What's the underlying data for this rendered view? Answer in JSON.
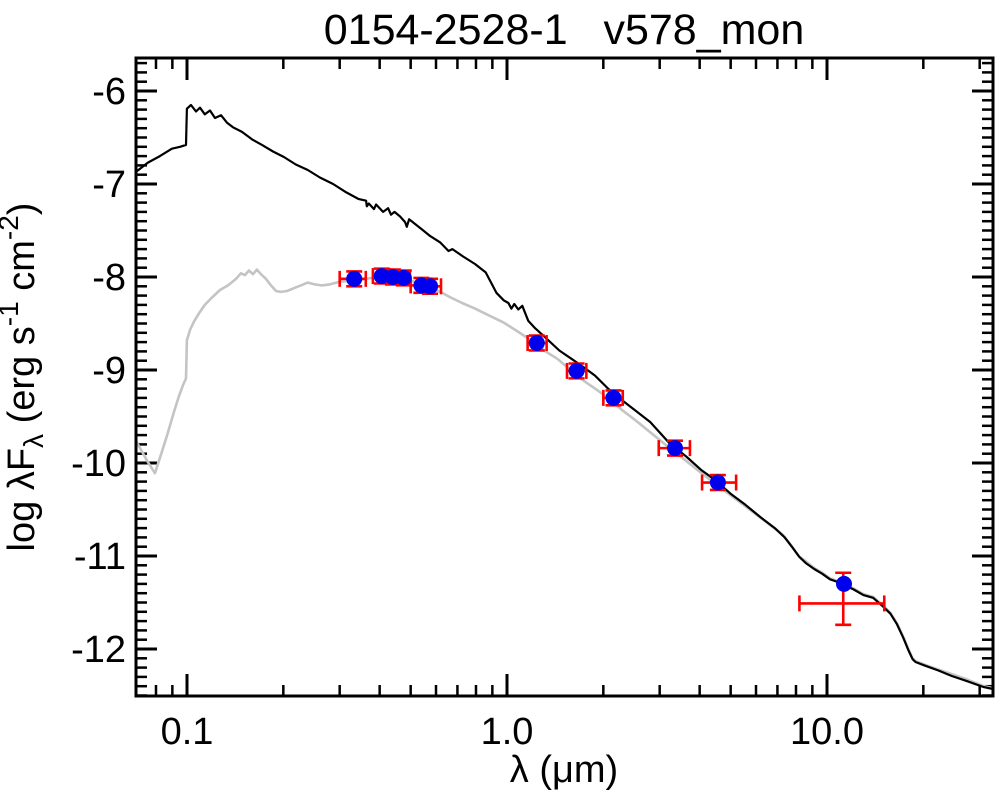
{
  "title": "0154-2528-1   v578_mon",
  "colors": {
    "frame": "#000000",
    "model_unreddened": "#000000",
    "model_reddened": "#c4c4c4",
    "photometry_point": "#0000ee",
    "observed_error": "#ff0000",
    "background": "#ffffff"
  },
  "chart_data": {
    "type": "line+scatter",
    "title": "0154-2528-1   v578_mon",
    "xlabel": "λ (μm)",
    "ylabel_parts": {
      "pre": "log λF",
      "sub": "λ",
      "mid1": " (erg s",
      "sup1": "-1",
      "mid2": " cm",
      "sup2": "-2",
      "end": ")"
    },
    "xscale": "log",
    "xlim": [
      0.0693,
      33.0
    ],
    "ylim": [
      -12.505,
      -5.645
    ],
    "grid": false,
    "legend": "none",
    "x_major_ticks": [
      {
        "value": 0.1,
        "label": "0.1"
      },
      {
        "value": 1.0,
        "label": "1.0"
      },
      {
        "value": 10.0,
        "label": "10.0"
      }
    ],
    "x_minor_ticks": [
      0.08,
      0.09,
      0.2,
      0.3,
      0.4,
      0.5,
      0.6,
      0.7,
      0.8,
      0.9,
      2,
      3,
      4,
      5,
      6,
      7,
      8,
      9,
      20,
      30
    ],
    "y_major_ticks": [
      {
        "value": -6,
        "label": "-6"
      },
      {
        "value": -7,
        "label": "-7"
      },
      {
        "value": -8,
        "label": "-8"
      },
      {
        "value": -9,
        "label": "-9"
      },
      {
        "value": -10,
        "label": "-10"
      },
      {
        "value": -11,
        "label": "-11"
      },
      {
        "value": -12,
        "label": "-12"
      }
    ],
    "y_minor_step": 0.1,
    "series": [
      {
        "name": "model-unreddened",
        "color": "#000000",
        "points": [
          [
            0.0693,
            -6.87
          ],
          [
            0.0755,
            -6.77
          ],
          [
            0.0823,
            -6.7
          ],
          [
            0.0897,
            -6.62
          ],
          [
            0.0951,
            -6.6
          ],
          [
            0.0993,
            -6.58
          ],
          [
            0.0999,
            -6.19
          ],
          [
            0.1029,
            -6.15
          ],
          [
            0.1067,
            -6.22
          ],
          [
            0.1098,
            -6.18
          ],
          [
            0.1137,
            -6.25
          ],
          [
            0.118,
            -6.21
          ],
          [
            0.1223,
            -6.29
          ],
          [
            0.1277,
            -6.26
          ],
          [
            0.1333,
            -6.34
          ],
          [
            0.1392,
            -6.39
          ],
          [
            0.1485,
            -6.44
          ],
          [
            0.1597,
            -6.52
          ],
          [
            0.1716,
            -6.58
          ],
          [
            0.1857,
            -6.65
          ],
          [
            0.2008,
            -6.71
          ],
          [
            0.2187,
            -6.79
          ],
          [
            0.2385,
            -6.85
          ],
          [
            0.2602,
            -6.93
          ],
          [
            0.2861,
            -7.0
          ],
          [
            0.3147,
            -7.09
          ],
          [
            0.3429,
            -7.16
          ],
          [
            0.3629,
            -7.18
          ],
          [
            0.3646,
            -7.24
          ],
          [
            0.37,
            -7.21
          ],
          [
            0.3841,
            -7.27
          ],
          [
            0.39,
            -7.22
          ],
          [
            0.4101,
            -7.3
          ],
          [
            0.425,
            -7.26
          ],
          [
            0.434,
            -7.33
          ],
          [
            0.445,
            -7.3
          ],
          [
            0.4634,
            -7.35
          ],
          [
            0.4805,
            -7.41
          ],
          [
            0.4861,
            -7.46
          ],
          [
            0.4944,
            -7.38
          ],
          [
            0.5163,
            -7.43
          ],
          [
            0.5431,
            -7.49
          ],
          [
            0.5754,
            -7.56
          ],
          [
            0.6194,
            -7.63
          ],
          [
            0.6563,
            -7.72
          ],
          [
            0.675,
            -7.7
          ],
          [
            0.729,
            -7.78
          ],
          [
            0.7945,
            -7.86
          ],
          [
            0.8577,
            -7.95
          ],
          [
            0.9265,
            -8.17
          ],
          [
            0.9763,
            -8.25
          ],
          [
            1.01,
            -8.28
          ],
          [
            1.032,
            -8.34
          ],
          [
            1.054,
            -8.29
          ],
          [
            1.085,
            -8.35
          ],
          [
            1.116,
            -8.31
          ],
          [
            1.165,
            -8.47
          ],
          [
            1.224,
            -8.55
          ],
          [
            1.336,
            -8.67
          ],
          [
            1.457,
            -8.79
          ],
          [
            1.591,
            -8.88
          ],
          [
            1.752,
            -8.98
          ],
          [
            1.884,
            -9.06
          ],
          [
            2.07,
            -9.2
          ],
          [
            2.238,
            -9.3
          ],
          [
            2.506,
            -9.43
          ],
          [
            2.805,
            -9.56
          ],
          [
            3.224,
            -9.79
          ],
          [
            3.632,
            -9.93
          ],
          [
            4.058,
            -10.08
          ],
          [
            4.456,
            -10.18
          ],
          [
            4.999,
            -10.33
          ],
          [
            5.558,
            -10.45
          ],
          [
            6.178,
            -10.58
          ],
          [
            6.871,
            -10.7
          ],
          [
            7.375,
            -10.8
          ],
          [
            7.803,
            -10.91
          ],
          [
            8.197,
            -11.01
          ],
          [
            8.611,
            -11.08
          ],
          [
            9.117,
            -11.14
          ],
          [
            9.651,
            -11.19
          ],
          [
            10.22,
            -11.25
          ],
          [
            10.81,
            -11.28
          ],
          [
            11.45,
            -11.32
          ],
          [
            12.12,
            -11.36
          ],
          [
            12.99,
            -11.42
          ],
          [
            13.93,
            -11.45
          ],
          [
            14.93,
            -11.54
          ],
          [
            15.78,
            -11.62
          ],
          [
            16.53,
            -11.73
          ],
          [
            17.32,
            -11.88
          ],
          [
            18.0,
            -12.02
          ],
          [
            18.51,
            -12.11
          ],
          [
            18.91,
            -12.14
          ],
          [
            20.26,
            -12.18
          ],
          [
            22.25,
            -12.23
          ],
          [
            24.54,
            -12.29
          ],
          [
            27.07,
            -12.34
          ],
          [
            30.9,
            -12.41
          ],
          [
            33.0,
            -12.43
          ]
        ]
      },
      {
        "name": "model-reddened",
        "color": "#c4c4c4",
        "points": [
          [
            0.0693,
            -9.76
          ],
          [
            0.0724,
            -9.88
          ],
          [
            0.0755,
            -9.99
          ],
          [
            0.0794,
            -10.11
          ],
          [
            0.0835,
            -9.88
          ],
          [
            0.0872,
            -9.67
          ],
          [
            0.0911,
            -9.45
          ],
          [
            0.0944,
            -9.28
          ],
          [
            0.0972,
            -9.16
          ],
          [
            0.0993,
            -9.09
          ],
          [
            0.0999,
            -8.68
          ],
          [
            0.1022,
            -8.57
          ],
          [
            0.1052,
            -8.48
          ],
          [
            0.109,
            -8.39
          ],
          [
            0.1137,
            -8.3
          ],
          [
            0.1197,
            -8.22
          ],
          [
            0.1268,
            -8.14
          ],
          [
            0.1343,
            -8.09
          ],
          [
            0.1423,
            -8.02
          ],
          [
            0.1474,
            -7.96
          ],
          [
            0.1517,
            -7.98
          ],
          [
            0.1561,
            -7.93
          ],
          [
            0.1607,
            -7.97
          ],
          [
            0.1654,
            -7.92
          ],
          [
            0.1703,
            -7.97
          ],
          [
            0.1765,
            -8.02
          ],
          [
            0.183,
            -8.09
          ],
          [
            0.1897,
            -8.15
          ],
          [
            0.1967,
            -8.16
          ],
          [
            0.2053,
            -8.15
          ],
          [
            0.2158,
            -8.12
          ],
          [
            0.2268,
            -8.09
          ],
          [
            0.2385,
            -8.06
          ],
          [
            0.2507,
            -8.08
          ],
          [
            0.2634,
            -8.09
          ],
          [
            0.2792,
            -8.08
          ],
          [
            0.3005,
            -8.05
          ],
          [
            0.3235,
            -8.04
          ],
          [
            0.3481,
            -8.03
          ],
          [
            0.3787,
            -8.01
          ],
          [
            0.4096,
            -8.0
          ],
          [
            0.443,
            -8.01
          ],
          [
            0.4773,
            -8.02
          ],
          [
            0.5143,
            -8.05
          ],
          [
            0.5431,
            -8.09
          ],
          [
            0.5754,
            -8.12
          ],
          [
            0.6194,
            -8.16
          ],
          [
            0.6668,
            -8.22
          ],
          [
            0.7237,
            -8.28
          ],
          [
            0.7945,
            -8.34
          ],
          [
            0.8862,
            -8.42
          ],
          [
            0.9763,
            -8.49
          ],
          [
            1.085,
            -8.59
          ],
          [
            1.224,
            -8.71
          ],
          [
            1.319,
            -8.8
          ],
          [
            1.437,
            -8.88
          ],
          [
            1.591,
            -9.01
          ],
          [
            1.727,
            -9.11
          ],
          [
            1.884,
            -9.2
          ],
          [
            2.07,
            -9.3
          ],
          [
            2.288,
            -9.43
          ],
          [
            2.542,
            -9.55
          ],
          [
            2.853,
            -9.69
          ],
          [
            3.224,
            -9.84
          ],
          [
            3.58,
            -9.96
          ],
          [
            3.99,
            -10.09
          ],
          [
            4.456,
            -10.22
          ],
          [
            4.927,
            -10.33
          ],
          [
            5.479,
            -10.45
          ],
          [
            6.041,
            -10.56
          ],
          [
            6.661,
            -10.67
          ],
          [
            7.27,
            -10.77
          ],
          [
            7.748,
            -10.89
          ],
          [
            8.138,
            -11.0
          ],
          [
            8.611,
            -11.06
          ],
          [
            9.117,
            -11.13
          ],
          [
            9.651,
            -11.18
          ],
          [
            10.22,
            -11.24
          ],
          [
            10.81,
            -11.27
          ],
          [
            11.45,
            -11.31
          ],
          [
            12.12,
            -11.35
          ],
          [
            12.99,
            -11.41
          ],
          [
            13.93,
            -11.44
          ],
          [
            14.93,
            -11.53
          ],
          [
            15.78,
            -11.61
          ],
          [
            16.53,
            -11.72
          ],
          [
            17.32,
            -11.87
          ],
          [
            18.0,
            -12.01
          ],
          [
            18.51,
            -12.1
          ],
          [
            18.91,
            -12.13
          ],
          [
            20.26,
            -12.17
          ],
          [
            22.25,
            -12.22
          ],
          [
            24.54,
            -12.27
          ],
          [
            27.07,
            -12.32
          ],
          [
            30.9,
            -12.4
          ],
          [
            33.0,
            -12.42
          ]
        ]
      }
    ],
    "photometry": {
      "symbol": "filled-circle",
      "point_color": "#0000ee",
      "error_color": "#ff0000",
      "points": [
        {
          "lambda": 0.333,
          "logF": -8.02,
          "xlo": 0.3,
          "xhi": 0.362,
          "yerr": 0.08
        },
        {
          "lambda": 0.406,
          "logF": -7.99,
          "xlo": 0.381,
          "xhi": 0.431,
          "yerr": 0.08
        },
        {
          "lambda": 0.44,
          "logF": -8.0,
          "xlo": 0.425,
          "xhi": 0.459,
          "yerr": 0.08
        },
        {
          "lambda": 0.476,
          "logF": -8.01,
          "xlo": 0.459,
          "xhi": 0.497,
          "yerr": 0.08
        },
        {
          "lambda": 0.54,
          "logF": -8.09,
          "xlo": 0.5,
          "xhi": 0.58,
          "yerr": 0.08
        },
        {
          "lambda": 0.575,
          "logF": -8.1,
          "xlo": 0.549,
          "xhi": 0.622,
          "yerr": 0.08
        },
        {
          "lambda": 1.239,
          "logF": -8.71,
          "xlo": 1.16,
          "xhi": 1.33,
          "yerr": 0.08
        },
        {
          "lambda": 1.65,
          "logF": -9.01,
          "xlo": 1.54,
          "xhi": 1.77,
          "yerr": 0.08
        },
        {
          "lambda": 2.152,
          "logF": -9.3,
          "xlo": 2.0,
          "xhi": 2.3,
          "yerr": 0.08
        },
        {
          "lambda": 3.35,
          "logF": -9.84,
          "xlo": 2.98,
          "xhi": 3.73,
          "yerr": 0.08
        },
        {
          "lambda": 4.56,
          "logF": -10.21,
          "xlo": 4.07,
          "xhi": 5.2,
          "yerr": 0.08
        },
        {
          "lambda": 11.3,
          "logF": -11.3,
          "obs": {
            "lambda": 11.24,
            "logF": -11.51,
            "xlo": 8.2,
            "xhi": 15.1,
            "ylo": -11.74,
            "yhi": -11.18
          }
        }
      ]
    }
  },
  "layout_note": "single SED panel, white background, no grid, no legend"
}
